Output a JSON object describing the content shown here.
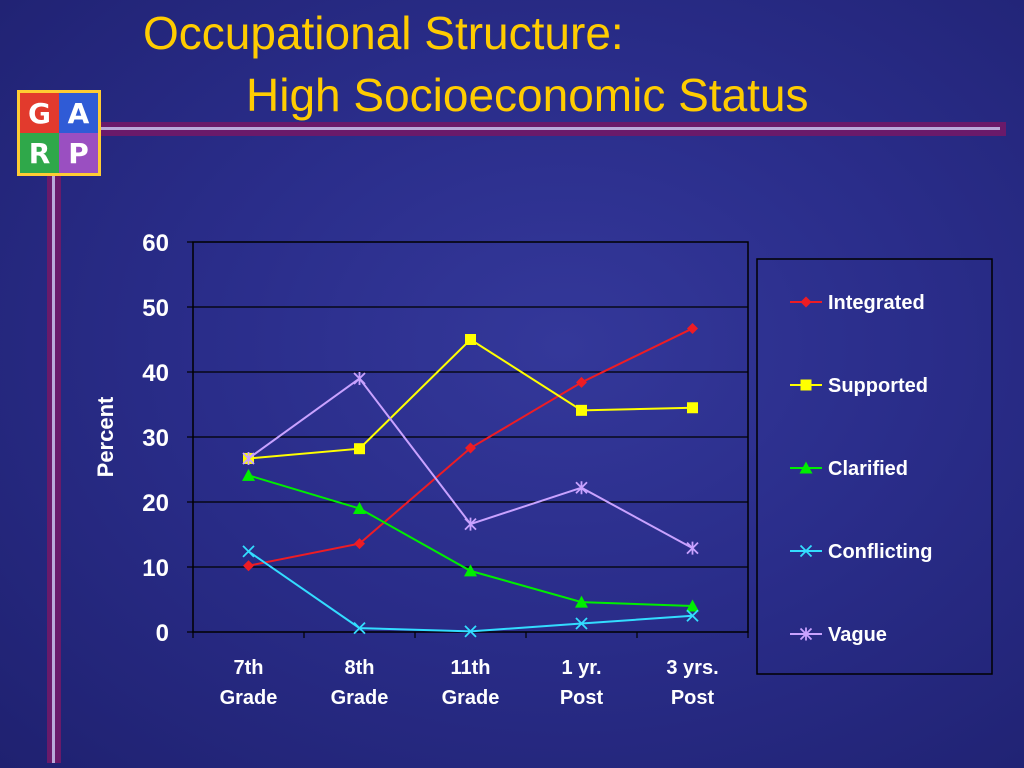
{
  "slide": {
    "title_line1": "Occupational Structure:",
    "title_line2": "High Socioeconomic Status",
    "logo": [
      "G",
      "A",
      "R",
      "P"
    ],
    "title_color": "#ffcc00"
  },
  "chart_data": {
    "type": "line",
    "title": "Occupational Structure: High Socioeconomic Status",
    "ylabel": "Percent",
    "xlabel": "",
    "ylim": [
      0,
      60
    ],
    "yticks": [
      0,
      10,
      20,
      30,
      40,
      50,
      60
    ],
    "grid": true,
    "legend_position": "right",
    "categories": [
      [
        "7th",
        "Grade"
      ],
      [
        "8th",
        "Grade"
      ],
      [
        "11th",
        "Grade"
      ],
      [
        "1 yr.",
        "Post"
      ],
      [
        "3 yrs.",
        "Post"
      ]
    ],
    "series": [
      {
        "name": "Integrated",
        "color": "#ee1c24",
        "marker": "diamond",
        "values": [
          10.2,
          13.6,
          28.3,
          38.4,
          46.7
        ]
      },
      {
        "name": "Supported",
        "color": "#ffff00",
        "marker": "square",
        "values": [
          26.7,
          28.2,
          45.0,
          34.1,
          34.5
        ]
      },
      {
        "name": "Clarified",
        "color": "#00ee00",
        "marker": "triangle",
        "values": [
          24.1,
          19.0,
          9.4,
          4.6,
          4.0
        ]
      },
      {
        "name": "Conflicting",
        "color": "#33ddff",
        "marker": "x",
        "values": [
          12.4,
          0.6,
          0.1,
          1.3,
          2.5
        ]
      },
      {
        "name": "Vague",
        "color": "#c9a2ff",
        "marker": "star",
        "values": [
          26.7,
          39.0,
          16.6,
          22.2,
          12.9
        ]
      }
    ]
  }
}
